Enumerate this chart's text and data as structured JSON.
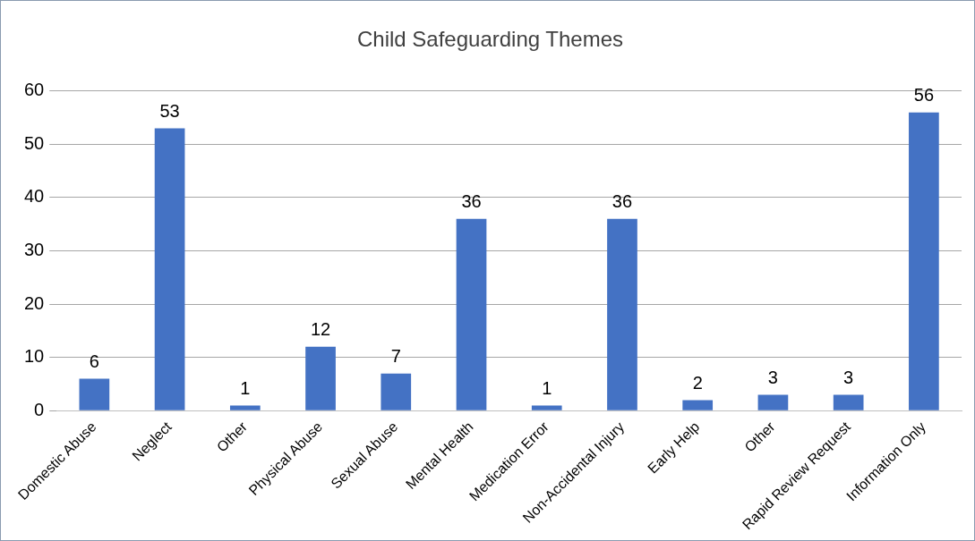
{
  "chart_data": {
    "type": "bar",
    "title": "Child Safeguarding Themes",
    "categories": [
      "Domestic Abuse",
      "Neglect",
      "Other",
      "Physical Abuse",
      "Sexual Abuse",
      "Mental Health",
      "Medication Error",
      "Non-Accidental Injury",
      "Early Help",
      "Other",
      "Rapid Review Request",
      "Information Only"
    ],
    "values": [
      6,
      53,
      1,
      12,
      7,
      36,
      1,
      36,
      2,
      3,
      3,
      56
    ],
    "color": "#4472c4",
    "ylim": [
      0,
      60
    ],
    "yticks": [
      0,
      10,
      20,
      30,
      40,
      50,
      60
    ],
    "grid": "y",
    "data_labels": true
  }
}
